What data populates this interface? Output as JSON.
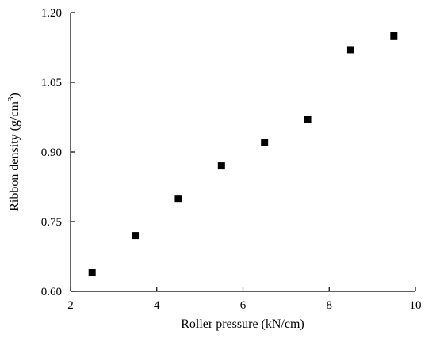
{
  "chart_data": {
    "type": "scatter",
    "title": "",
    "xlabel": "Roller pressure (kN/cm)",
    "ylabel_main": "Ribbon density (g/cm",
    "ylabel_sup": "3",
    "ylabel_end": ")",
    "xlim": [
      2,
      10
    ],
    "ylim": [
      0.6,
      1.2
    ],
    "xticks": [
      2,
      4,
      6,
      8,
      10
    ],
    "xtick_labels": [
      "2",
      "4",
      "6",
      "8",
      "10"
    ],
    "yticks": [
      0.6,
      0.75,
      0.9,
      1.05,
      1.2
    ],
    "ytick_labels": [
      "0.60",
      "0.75",
      "0.90",
      "1.05",
      "1.20"
    ],
    "grid": false,
    "marker": "square",
    "color": "#000000",
    "series": [
      {
        "x": [
          2.5,
          3.5,
          4.5,
          5.5,
          6.5,
          7.5,
          8.5,
          9.5
        ],
        "y": [
          0.64,
          0.72,
          0.8,
          0.87,
          0.92,
          0.97,
          1.12,
          1.15
        ]
      }
    ]
  }
}
